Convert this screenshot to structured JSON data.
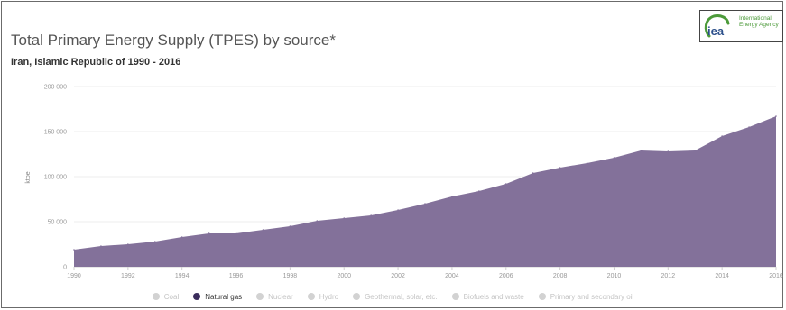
{
  "header": {
    "title": "Total Primary Energy Supply (TPES) by source*",
    "subtitle": "Iran, Islamic Republic of 1990 - 2016"
  },
  "logo": {
    "mark": "iea",
    "text": "International\nEnergy Agency",
    "color": "#4c9a3a"
  },
  "colors": {
    "area": "#83719a",
    "inactive": "#d2d2d2"
  },
  "chart_data": {
    "type": "area",
    "title": "Total Primary Energy Supply (TPES) by source*",
    "subtitle": "Iran, Islamic Republic of 1990 - 2016",
    "ylabel": "ktoe",
    "xlabel": "",
    "xlim": [
      1990,
      2016
    ],
    "ylim": [
      0,
      200000
    ],
    "yticks": [
      0,
      50000,
      100000,
      150000,
      200000
    ],
    "ytick_labels": [
      "0",
      "50 000",
      "100 000",
      "150 000",
      "200 000"
    ],
    "xticks": [
      1990,
      1992,
      1994,
      1996,
      1998,
      2000,
      2002,
      2004,
      2006,
      2008,
      2010,
      2012,
      2014,
      2016
    ],
    "xtick_labels": [
      "1990",
      "1992",
      "1994",
      "1996",
      "1998",
      "2000",
      "2002",
      "2004",
      "2006",
      "2008",
      "2010",
      "2012",
      "2014",
      "2016"
    ],
    "grid": true,
    "legend_position": "bottom",
    "x": [
      1990,
      1991,
      1992,
      1993,
      1994,
      1995,
      1996,
      1997,
      1998,
      1999,
      2000,
      2001,
      2002,
      2003,
      2004,
      2005,
      2006,
      2007,
      2008,
      2009,
      2010,
      2011,
      2012,
      2013,
      2014,
      2015,
      2016
    ],
    "series": [
      {
        "name": "Natural gas",
        "color": "#83719a",
        "values": [
          19000,
          23000,
          25000,
          28000,
          33000,
          37000,
          37000,
          41000,
          45000,
          51000,
          54000,
          57000,
          63000,
          70000,
          78000,
          84000,
          92000,
          104000,
          110000,
          115000,
          121000,
          129000,
          128000,
          129000,
          145000,
          155000,
          167000
        ]
      }
    ],
    "legend": [
      {
        "label": "Coal",
        "active": false
      },
      {
        "label": "Natural gas",
        "active": true
      },
      {
        "label": "Nuclear",
        "active": false
      },
      {
        "label": "Hydro",
        "active": false
      },
      {
        "label": "Geothermal, solar, etc.",
        "active": false
      },
      {
        "label": "Biofuels and waste",
        "active": false
      },
      {
        "label": "Primary and secondary oil",
        "active": false
      }
    ]
  }
}
